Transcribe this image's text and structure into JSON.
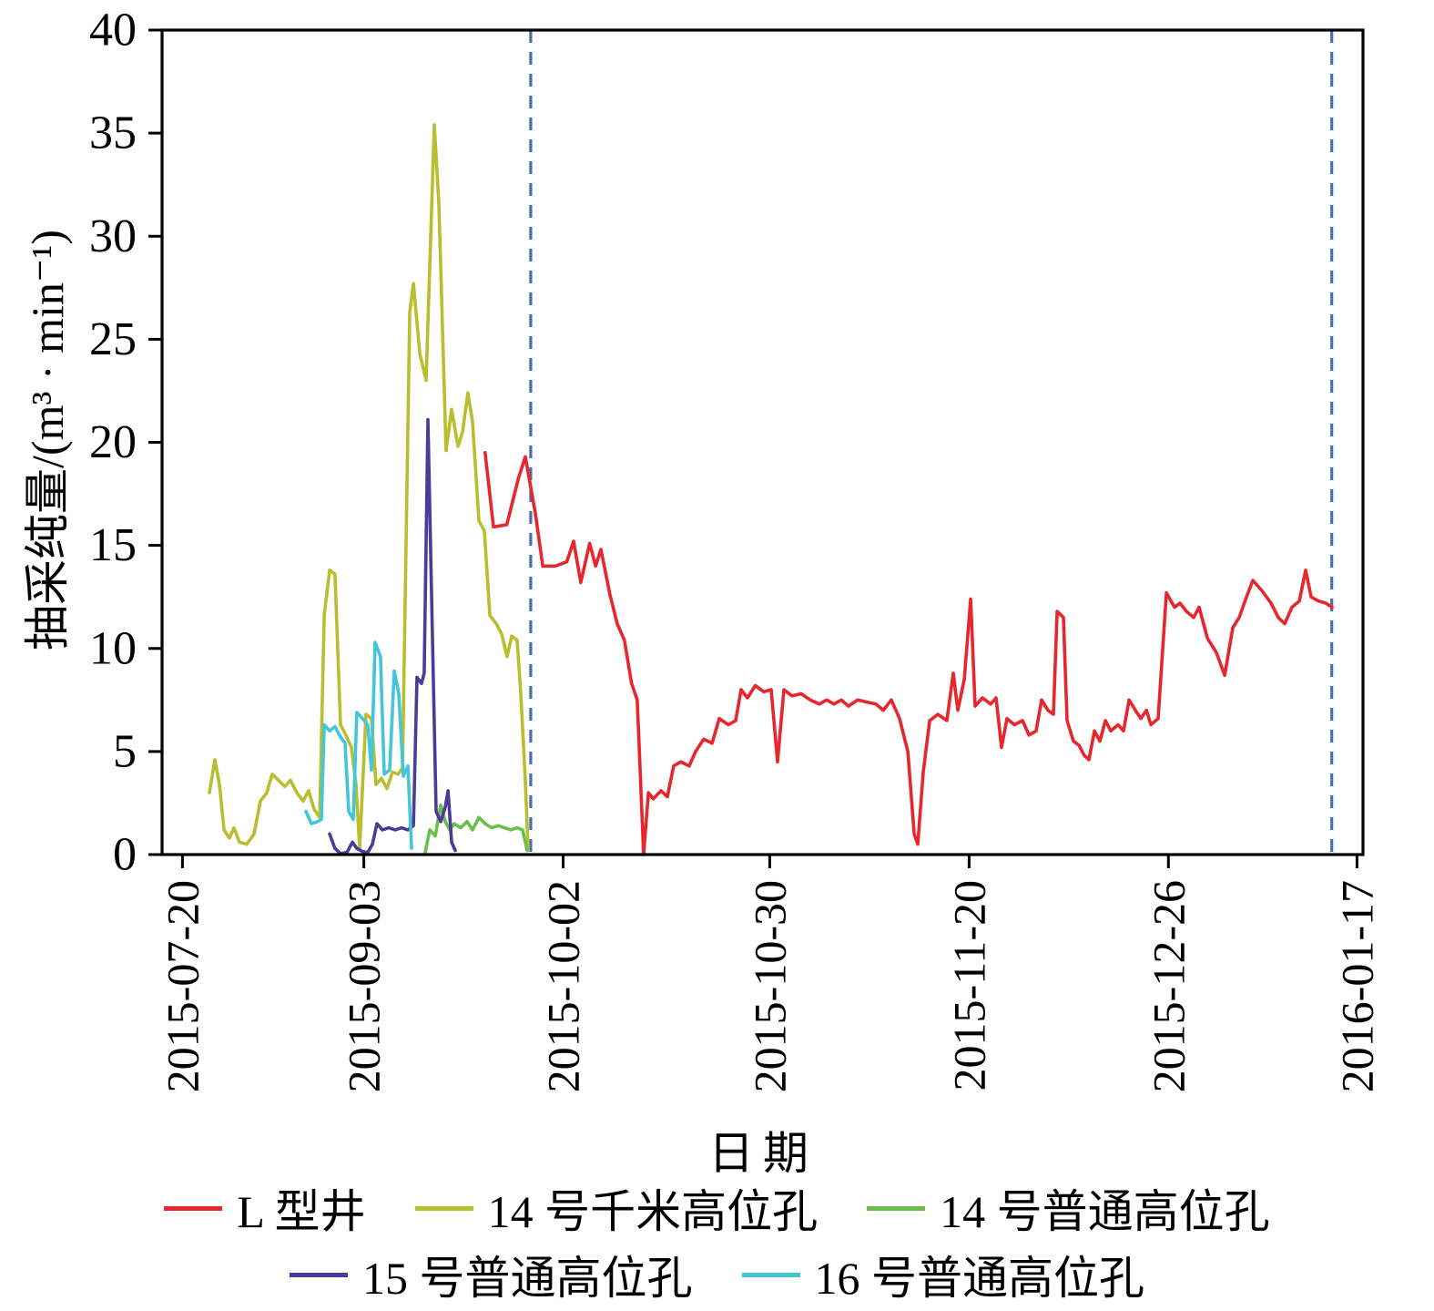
{
  "chart_data": {
    "type": "line",
    "title": "",
    "xlabel": "日期",
    "ylabel": "抽采纯量/(m³ · min⁻¹)",
    "ylim": [
      0,
      40
    ],
    "y_ticks": [
      0,
      5,
      10,
      15,
      20,
      25,
      30,
      35,
      40
    ],
    "x_tick_labels": [
      "2015-07-20",
      "2015-09-03",
      "2015-10-02",
      "2015-10-30",
      "2015-11-20",
      "2015-12-26",
      "2016-01-17"
    ],
    "x_tick_pos": [
      0.017,
      0.168,
      0.334,
      0.506,
      0.672,
      0.838,
      0.995
    ],
    "x_units": "fraction of plot width (category/time axis)",
    "grid": false,
    "legend_position": "bottom",
    "vlines": {
      "color": "#4a6fb5",
      "style": "dashed",
      "positions": [
        0.307,
        0.974
      ]
    },
    "series": [
      {
        "name": "L 型井",
        "color": "#e8262d",
        "points": [
          [
            0.269,
            19.5
          ],
          [
            0.276,
            15.9
          ],
          [
            0.287,
            16.0
          ],
          [
            0.297,
            18.3
          ],
          [
            0.3025,
            19.3
          ],
          [
            0.311,
            16.5
          ],
          [
            0.317,
            14.0
          ],
          [
            0.3275,
            14.0
          ],
          [
            0.337,
            14.2
          ],
          [
            0.3427,
            15.2
          ],
          [
            0.3487,
            13.2
          ],
          [
            0.356,
            15.1
          ],
          [
            0.361,
            14.0
          ],
          [
            0.3654,
            14.8
          ],
          [
            0.373,
            12.6
          ],
          [
            0.379,
            11.2
          ],
          [
            0.385,
            10.4
          ],
          [
            0.391,
            8.3
          ],
          [
            0.3957,
            7.5
          ],
          [
            0.401,
            0.0
          ],
          [
            0.405,
            3.0
          ],
          [
            0.409,
            2.7
          ],
          [
            0.4155,
            3.1
          ],
          [
            0.4208,
            2.8
          ],
          [
            0.426,
            4.3
          ],
          [
            0.432,
            4.5
          ],
          [
            0.439,
            4.3
          ],
          [
            0.4443,
            5.0
          ],
          [
            0.451,
            5.6
          ],
          [
            0.458,
            5.4
          ],
          [
            0.464,
            6.6
          ],
          [
            0.4716,
            6.3
          ],
          [
            0.4776,
            6.5
          ],
          [
            0.4822,
            8.0
          ],
          [
            0.4875,
            7.6
          ],
          [
            0.494,
            8.2
          ],
          [
            0.501,
            7.9
          ],
          [
            0.5072,
            8.0
          ],
          [
            0.5125,
            4.5
          ],
          [
            0.5178,
            8.0
          ],
          [
            0.5246,
            7.7
          ],
          [
            0.5322,
            7.8
          ],
          [
            0.5398,
            7.5
          ],
          [
            0.5474,
            7.3
          ],
          [
            0.5534,
            7.5
          ],
          [
            0.5595,
            7.3
          ],
          [
            0.5656,
            7.5
          ],
          [
            0.5716,
            7.2
          ],
          [
            0.5792,
            7.5
          ],
          [
            0.5868,
            7.4
          ],
          [
            0.5944,
            7.3
          ],
          [
            0.6005,
            7.0
          ],
          [
            0.6073,
            7.5
          ],
          [
            0.6141,
            6.6
          ],
          [
            0.621,
            5.0
          ],
          [
            0.6263,
            1.0
          ],
          [
            0.6293,
            0.5
          ],
          [
            0.6338,
            4.0
          ],
          [
            0.6392,
            6.5
          ],
          [
            0.646,
            6.8
          ],
          [
            0.6535,
            6.5
          ],
          [
            0.6588,
            8.8
          ],
          [
            0.6626,
            7.0
          ],
          [
            0.668,
            8.5
          ],
          [
            0.6733,
            12.4
          ],
          [
            0.677,
            7.2
          ],
          [
            0.6831,
            7.6
          ],
          [
            0.69,
            7.3
          ],
          [
            0.6945,
            7.6
          ],
          [
            0.699,
            5.2
          ],
          [
            0.7036,
            6.6
          ],
          [
            0.7097,
            6.3
          ],
          [
            0.7165,
            6.5
          ],
          [
            0.7218,
            5.8
          ],
          [
            0.7278,
            6.0
          ],
          [
            0.7324,
            7.5
          ],
          [
            0.7377,
            7.0
          ],
          [
            0.7422,
            6.8
          ],
          [
            0.7453,
            11.8
          ],
          [
            0.7506,
            11.5
          ],
          [
            0.7536,
            6.5
          ],
          [
            0.7589,
            5.5
          ],
          [
            0.7635,
            5.3
          ],
          [
            0.768,
            4.8
          ],
          [
            0.7718,
            4.6
          ],
          [
            0.7764,
            6.0
          ],
          [
            0.7809,
            5.5
          ],
          [
            0.7855,
            6.5
          ],
          [
            0.79,
            6.0
          ],
          [
            0.7961,
            6.3
          ],
          [
            0.8006,
            6.0
          ],
          [
            0.8052,
            7.5
          ],
          [
            0.8105,
            7.0
          ],
          [
            0.815,
            6.6
          ],
          [
            0.8196,
            7.0
          ],
          [
            0.8234,
            6.3
          ],
          [
            0.8294,
            6.6
          ],
          [
            0.8363,
            12.7
          ],
          [
            0.8431,
            12.0
          ],
          [
            0.8476,
            12.2
          ],
          [
            0.8529,
            11.8
          ],
          [
            0.859,
            11.5
          ],
          [
            0.8635,
            12.0
          ],
          [
            0.8704,
            10.5
          ],
          [
            0.8779,
            9.8
          ],
          [
            0.8848,
            8.7
          ],
          [
            0.8916,
            11.0
          ],
          [
            0.8969,
            11.5
          ],
          [
            0.903,
            12.5
          ],
          [
            0.9083,
            13.3
          ],
          [
            0.9159,
            12.8
          ],
          [
            0.9234,
            12.2
          ],
          [
            0.9295,
            11.5
          ],
          [
            0.9348,
            11.2
          ],
          [
            0.9409,
            12.0
          ],
          [
            0.947,
            12.3
          ],
          [
            0.9523,
            13.8
          ],
          [
            0.9568,
            12.5
          ],
          [
            0.9629,
            12.3
          ],
          [
            0.969,
            12.2
          ],
          [
            0.9742,
            12.0
          ]
        ]
      },
      {
        "name": "14 号千米高位孔",
        "color": "#b9be2f",
        "points": [
          [
            0.0394,
            3.0
          ],
          [
            0.044,
            4.6
          ],
          [
            0.0478,
            3.4
          ],
          [
            0.0516,
            1.2
          ],
          [
            0.0561,
            0.8
          ],
          [
            0.0599,
            1.3
          ],
          [
            0.0644,
            0.6
          ],
          [
            0.0705,
            0.5
          ],
          [
            0.0766,
            1.0
          ],
          [
            0.0819,
            2.6
          ],
          [
            0.0872,
            3.0
          ],
          [
            0.0917,
            3.9
          ],
          [
            0.097,
            3.6
          ],
          [
            0.1023,
            3.3
          ],
          [
            0.1069,
            3.6
          ],
          [
            0.1122,
            3.0
          ],
          [
            0.1175,
            2.6
          ],
          [
            0.1221,
            3.1
          ],
          [
            0.1266,
            2.2
          ],
          [
            0.1312,
            1.8
          ],
          [
            0.135,
            11.6
          ],
          [
            0.1395,
            13.8
          ],
          [
            0.144,
            13.6
          ],
          [
            0.1486,
            6.3
          ],
          [
            0.1531,
            5.8
          ],
          [
            0.1577,
            5.2
          ],
          [
            0.1615,
            3.4
          ],
          [
            0.1645,
            0.3
          ],
          [
            0.1698,
            6.8
          ],
          [
            0.1744,
            6.6
          ],
          [
            0.1782,
            3.4
          ],
          [
            0.1827,
            3.7
          ],
          [
            0.1873,
            3.2
          ],
          [
            0.1918,
            4.0
          ],
          [
            0.1964,
            3.9
          ],
          [
            0.2002,
            4.2
          ],
          [
            0.2062,
            26.3
          ],
          [
            0.2093,
            27.7
          ],
          [
            0.2146,
            24.3
          ],
          [
            0.2199,
            23.0
          ],
          [
            0.2267,
            35.4
          ],
          [
            0.2305,
            31.6
          ],
          [
            0.2365,
            19.6
          ],
          [
            0.2411,
            21.6
          ],
          [
            0.2464,
            19.8
          ],
          [
            0.2502,
            20.5
          ],
          [
            0.2547,
            22.4
          ],
          [
            0.2585,
            21.0
          ],
          [
            0.2638,
            16.2
          ],
          [
            0.2684,
            15.7
          ],
          [
            0.2729,
            11.6
          ],
          [
            0.2783,
            11.2
          ],
          [
            0.2828,
            10.7
          ],
          [
            0.2873,
            9.6
          ],
          [
            0.2911,
            10.6
          ],
          [
            0.2957,
            10.4
          ],
          [
            0.2987,
            7.8
          ],
          [
            0.3025,
            3.6
          ],
          [
            0.3048,
            0.3
          ]
        ]
      },
      {
        "name": "14 号普通高位孔",
        "color": "#6abf4b",
        "points": [
          [
            0.2191,
            0.1
          ],
          [
            0.2229,
            1.2
          ],
          [
            0.2275,
            0.9
          ],
          [
            0.232,
            2.4
          ],
          [
            0.2358,
            1.6
          ],
          [
            0.2396,
            1.2
          ],
          [
            0.2434,
            1.5
          ],
          [
            0.2487,
            1.3
          ],
          [
            0.254,
            1.6
          ],
          [
            0.2585,
            1.2
          ],
          [
            0.2638,
            1.8
          ],
          [
            0.2691,
            1.5
          ],
          [
            0.2745,
            1.3
          ],
          [
            0.2798,
            1.4
          ],
          [
            0.2851,
            1.3
          ],
          [
            0.2904,
            1.2
          ],
          [
            0.2957,
            1.3
          ],
          [
            0.3002,
            1.2
          ],
          [
            0.304,
            0.2
          ]
        ]
      },
      {
        "name": "15 号普通高位孔",
        "color": "#4a3c97",
        "points": [
          [
            0.1395,
            1.0
          ],
          [
            0.144,
            0.3
          ],
          [
            0.1486,
            0.05
          ],
          [
            0.1539,
            0.1
          ],
          [
            0.1585,
            0.6
          ],
          [
            0.1622,
            0.3
          ],
          [
            0.1668,
            0.15
          ],
          [
            0.1713,
            0.1
          ],
          [
            0.1751,
            0.5
          ],
          [
            0.1789,
            1.5
          ],
          [
            0.1835,
            1.2
          ],
          [
            0.1888,
            1.3
          ],
          [
            0.1941,
            1.2
          ],
          [
            0.1994,
            1.3
          ],
          [
            0.2047,
            1.2
          ],
          [
            0.2093,
            1.4
          ],
          [
            0.2123,
            8.6
          ],
          [
            0.2161,
            8.3
          ],
          [
            0.2183,
            8.8
          ],
          [
            0.2214,
            21.1
          ],
          [
            0.2244,
            12.6
          ],
          [
            0.2282,
            2.1
          ],
          [
            0.232,
            1.6
          ],
          [
            0.2358,
            2.3
          ],
          [
            0.2381,
            3.1
          ],
          [
            0.2411,
            0.6
          ],
          [
            0.2441,
            0.2
          ]
        ]
      },
      {
        "name": "16 号普通高位孔",
        "color": "#45c5d8",
        "points": [
          [
            0.1198,
            2.1
          ],
          [
            0.1243,
            1.5
          ],
          [
            0.1296,
            1.6
          ],
          [
            0.1327,
            1.7
          ],
          [
            0.135,
            6.3
          ],
          [
            0.1395,
            6.0
          ],
          [
            0.144,
            6.2
          ],
          [
            0.1486,
            5.7
          ],
          [
            0.1524,
            5.4
          ],
          [
            0.1554,
            2.1
          ],
          [
            0.1592,
            1.7
          ],
          [
            0.1622,
            6.9
          ],
          [
            0.1668,
            6.6
          ],
          [
            0.1713,
            6.3
          ],
          [
            0.1744,
            4.1
          ],
          [
            0.1774,
            10.3
          ],
          [
            0.1819,
            9.6
          ],
          [
            0.185,
            3.9
          ],
          [
            0.1895,
            4.1
          ],
          [
            0.1933,
            8.9
          ],
          [
            0.1971,
            7.8
          ],
          [
            0.2009,
            3.8
          ],
          [
            0.2047,
            4.3
          ],
          [
            0.2077,
            0.3
          ]
        ]
      }
    ]
  }
}
